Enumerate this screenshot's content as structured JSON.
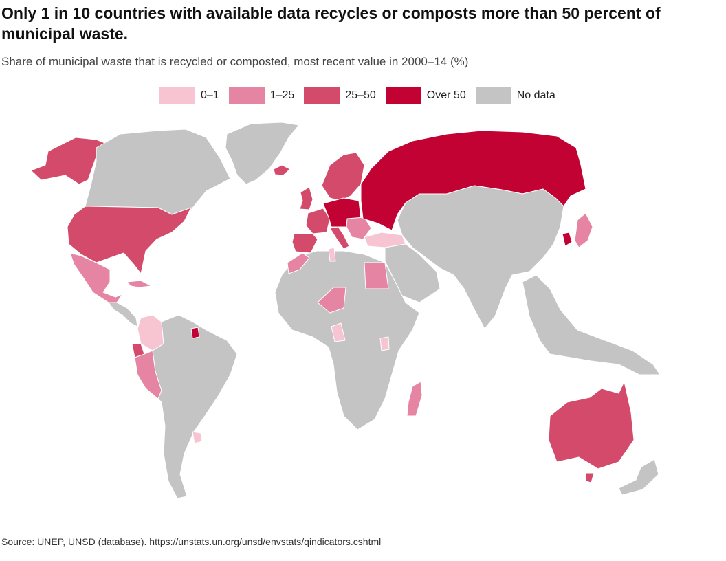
{
  "title": "Only 1 in 10 countries with available data recycles or composts more than 50 percent of municipal waste.",
  "subtitle": "Share of municipal waste that is recycled or composted, most recent value in 2000–14 (%)",
  "legend": {
    "items": [
      {
        "label": "0–1",
        "color": "#f7c4d1"
      },
      {
        "label": "1–25",
        "color": "#e584a3"
      },
      {
        "label": "25–50",
        "color": "#d44a6b"
      },
      {
        "label": "Over 50",
        "color": "#c20233"
      },
      {
        "label": "No data",
        "color": "#c4c4c4"
      }
    ]
  },
  "source": "Source: UNEP, UNSD (database). https://unstats.un.org/unsd/envstats/qindicators.cshtml",
  "map_regions": [
    {
      "region": "Greenland",
      "category": "No data"
    },
    {
      "region": "Alaska",
      "category": "25–50"
    },
    {
      "region": "Canada",
      "category": "No data"
    },
    {
      "region": "United States",
      "category": "25–50"
    },
    {
      "region": "Mexico",
      "category": "1–25"
    },
    {
      "region": "Central America",
      "category": "No data"
    },
    {
      "region": "Cuba",
      "category": "1–25"
    },
    {
      "region": "Colombia",
      "category": "0–1"
    },
    {
      "region": "French Guiana",
      "category": "Over 50"
    },
    {
      "region": "Peru",
      "category": "1–25"
    },
    {
      "region": "Ecuador",
      "category": "25–50"
    },
    {
      "region": "Uruguay",
      "category": "0–1"
    },
    {
      "region": "South America (other)",
      "category": "No data"
    },
    {
      "region": "Iceland",
      "category": "25–50"
    },
    {
      "region": "Scandinavia",
      "category": "25–50"
    },
    {
      "region": "United Kingdom",
      "category": "25–50"
    },
    {
      "region": "Central Europe",
      "category": "Over 50"
    },
    {
      "region": "Western Europe",
      "category": "25–50"
    },
    {
      "region": "Iberia",
      "category": "25–50"
    },
    {
      "region": "Italy",
      "category": "25–50"
    },
    {
      "region": "Balkans",
      "category": "1–25"
    },
    {
      "region": "Turkey",
      "category": "0–1"
    },
    {
      "region": "Russia",
      "category": "Over 50"
    },
    {
      "region": "Morocco",
      "category": "1–25"
    },
    {
      "region": "Tunisia",
      "category": "0–1"
    },
    {
      "region": "Egypt",
      "category": "1–25"
    },
    {
      "region": "Niger",
      "category": "1–25"
    },
    {
      "region": "Cameroon",
      "category": "0–1"
    },
    {
      "region": "Uganda",
      "category": "0–1"
    },
    {
      "region": "Madagascar",
      "category": "1–25"
    },
    {
      "region": "Africa (other)",
      "category": "No data"
    },
    {
      "region": "Middle East",
      "category": "No data"
    },
    {
      "region": "Asia (other)",
      "category": "No data"
    },
    {
      "region": "Korea",
      "category": "Over 50"
    },
    {
      "region": "Japan",
      "category": "1–25"
    },
    {
      "region": "Southeast Asia",
      "category": "No data"
    },
    {
      "region": "Australia",
      "category": "25–50"
    },
    {
      "region": "Tasmania",
      "category": "25–50"
    },
    {
      "region": "New Zealand",
      "category": "No data"
    }
  ]
}
